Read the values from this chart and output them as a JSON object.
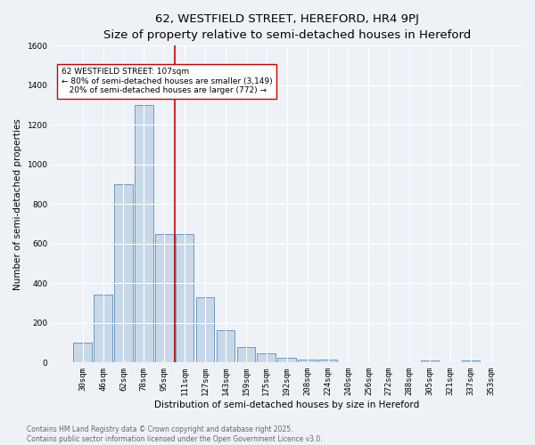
{
  "title": "62, WESTFIELD STREET, HEREFORD, HR4 9PJ",
  "subtitle": "Size of property relative to semi-detached houses in Hereford",
  "xlabel": "Distribution of semi-detached houses by size in Hereford",
  "ylabel": "Number of semi-detached properties",
  "bar_labels": [
    "30sqm",
    "46sqm",
    "62sqm",
    "78sqm",
    "95sqm",
    "111sqm",
    "127sqm",
    "143sqm",
    "159sqm",
    "175sqm",
    "192sqm",
    "208sqm",
    "224sqm",
    "240sqm",
    "256sqm",
    "272sqm",
    "288sqm",
    "305sqm",
    "321sqm",
    "337sqm",
    "353sqm"
  ],
  "bar_values": [
    100,
    345,
    900,
    1300,
    650,
    650,
    330,
    165,
    80,
    45,
    25,
    15,
    15,
    0,
    0,
    0,
    0,
    10,
    0,
    10,
    0
  ],
  "bar_color": "#c8d8e8",
  "bar_edge_color": "#5b8db8",
  "vline_color": "#cc0000",
  "annotation_text": "62 WESTFIELD STREET: 107sqm\n← 80% of semi-detached houses are smaller (3,149)\n   20% of semi-detached houses are larger (772) →",
  "annotation_box_color": "#ffffff",
  "annotation_box_edge_color": "#cc0000",
  "ylim": [
    0,
    1600
  ],
  "yticks": [
    0,
    200,
    400,
    600,
    800,
    1000,
    1200,
    1400,
    1600
  ],
  "footer_text": "Contains HM Land Registry data © Crown copyright and database right 2025.\nContains public sector information licensed under the Open Government Licence v3.0.",
  "bg_color": "#eef2f7",
  "grid_color": "#ffffff",
  "title_fontsize": 9.5,
  "axis_label_fontsize": 7.5,
  "tick_fontsize": 6.5,
  "annotation_fontsize": 6.5,
  "footer_fontsize": 5.5
}
